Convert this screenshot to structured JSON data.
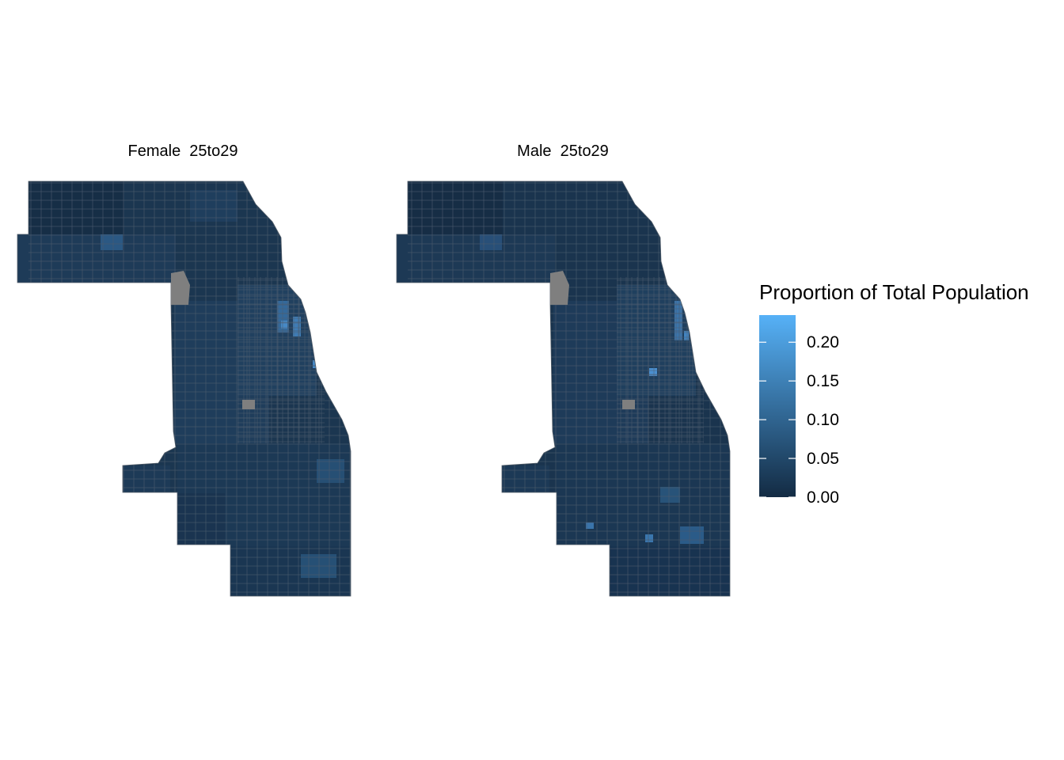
{
  "panels": [
    {
      "title": "Female  25to29"
    },
    {
      "title": "Male  25to29"
    }
  ],
  "legend": {
    "title": "Proportion of Total Population",
    "ticks": [
      "0.00",
      "0.05",
      "0.10",
      "0.15",
      "0.20"
    ],
    "range": [
      0.0,
      0.235
    ],
    "low_color": "#132B43",
    "high_color": "#56B1F7",
    "missing_color": "#7F7F7F"
  }
}
